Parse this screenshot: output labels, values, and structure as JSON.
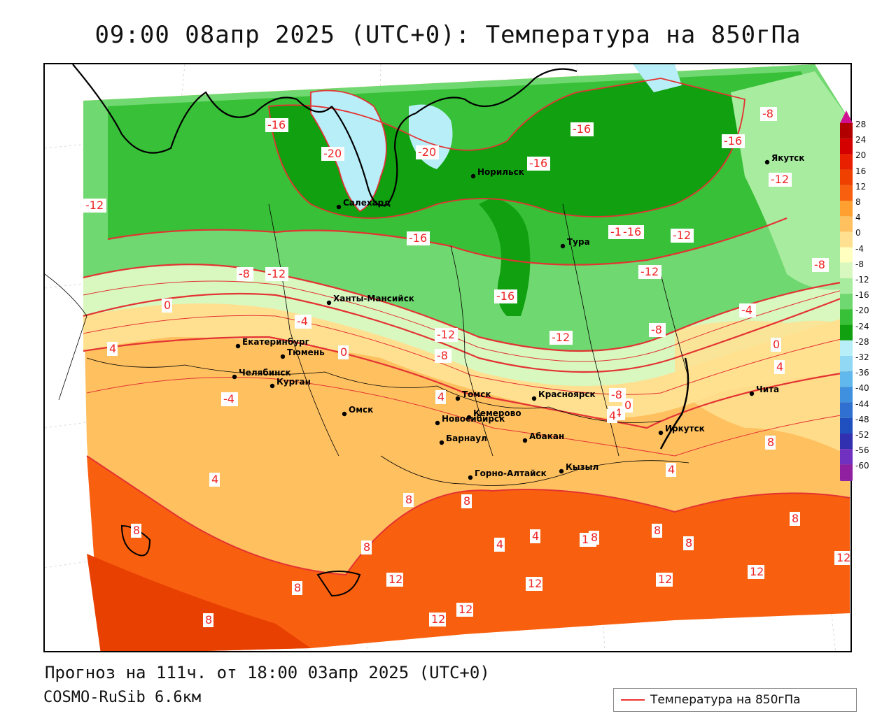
{
  "title": "09:00 08апр 2025 (UTC+0): Температура на 850гПа",
  "footer": {
    "forecast": "Прогноз на 111ч. от 18:00 03апр 2025 (UTC+0)",
    "model": "COSMO-RuSib 6.6км"
  },
  "legend": {
    "label": "Температура на 850гПа",
    "line_color": "#e33333"
  },
  "colorbar": {
    "labels": [
      "28",
      "24",
      "20",
      "16",
      "12",
      "8",
      "4",
      "0",
      "-4",
      "-8",
      "-12",
      "-16",
      "-20",
      "-24",
      "-28",
      "-32",
      "-36",
      "-40",
      "-44",
      "-48",
      "-52",
      "-56",
      "-60"
    ],
    "colors": [
      "#b00000",
      "#d40000",
      "#e82000",
      "#f04000",
      "#f86010",
      "#ffa030",
      "#ffc060",
      "#ffe090",
      "#ffffc0",
      "#d8f8c0",
      "#a8eca0",
      "#70d870",
      "#38c038",
      "#10a010",
      "#b8eef8",
      "#90d8f4",
      "#60b8ec",
      "#4090e0",
      "#3070d0",
      "#2050c0",
      "#3030b0",
      "#7030c0",
      "#9020a0"
    ],
    "top_arrow_color": "#d01090",
    "bottom_arrow_color": "#8020b0"
  },
  "cities": [
    {
      "name": "Салехард"
    },
    {
      "name": "Норильск"
    },
    {
      "name": "Якутск"
    },
    {
      "name": "Тура"
    },
    {
      "name": "Ханты-Мансийск"
    },
    {
      "name": "Екатеринбург"
    },
    {
      "name": "Тюмень"
    },
    {
      "name": "Челябинск"
    },
    {
      "name": "Курган"
    },
    {
      "name": "Омск"
    },
    {
      "name": "Новосибирск"
    },
    {
      "name": "Томск"
    },
    {
      "name": "Кемерово"
    },
    {
      "name": "Красноярск"
    },
    {
      "name": "Барнаул"
    },
    {
      "name": "Абакан"
    },
    {
      "name": "Горно-Алтайск"
    },
    {
      "name": "Кызыл"
    },
    {
      "name": "Иркутск"
    },
    {
      "name": "Чита"
    }
  ],
  "isotherm_labels": [
    "-16",
    "-20",
    "-20",
    "-16",
    "-16",
    "-16",
    "-8",
    "-12",
    "-12",
    "-16",
    "-16",
    "-12",
    "-8",
    "-8",
    "-12",
    "-16",
    "-16",
    "-12",
    "-8",
    "-4",
    "0",
    "-4",
    "-12",
    "-8",
    "-12",
    "-8",
    "-4",
    "0",
    "0",
    "4",
    "4",
    "4",
    "4",
    "-4",
    "0",
    "4",
    "8",
    "4",
    "8",
    "8",
    "8",
    "8",
    "8",
    "12",
    "12",
    "12",
    "12",
    "12",
    "12",
    "12",
    "8",
    "8",
    "8",
    "8",
    "8",
    "12",
    "4",
    "4"
  ]
}
